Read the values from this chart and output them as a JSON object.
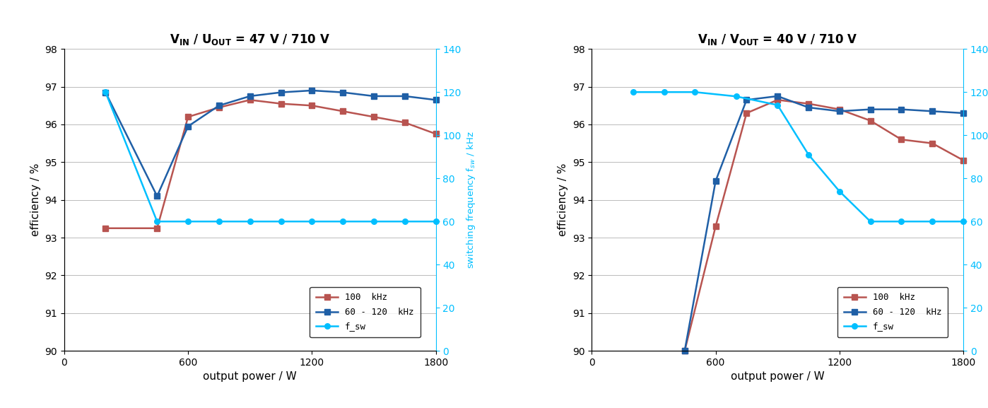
{
  "chart1": {
    "eff_100k_x": [
      200,
      450,
      600,
      750,
      900,
      1050,
      1200,
      1350,
      1500,
      1650,
      1800
    ],
    "eff_100k_y": [
      93.25,
      93.25,
      96.2,
      96.45,
      96.65,
      96.55,
      96.5,
      96.35,
      96.2,
      96.05,
      95.75
    ],
    "eff_var_x": [
      200,
      450,
      600,
      750,
      900,
      1050,
      1200,
      1350,
      1500,
      1650,
      1800
    ],
    "eff_var_y": [
      96.85,
      94.1,
      95.95,
      96.5,
      96.75,
      96.85,
      96.9,
      96.85,
      96.75,
      96.75,
      96.65
    ],
    "fsw_x": [
      200,
      450,
      600,
      750,
      900,
      1050,
      1200,
      1350,
      1500,
      1650,
      1800
    ],
    "fsw_y": [
      120,
      60,
      60,
      60,
      60,
      60,
      60,
      60,
      60,
      60,
      60
    ]
  },
  "chart2": {
    "eff_100k_x": [
      450,
      600,
      750,
      900,
      1050,
      1200,
      1350,
      1500,
      1650,
      1800
    ],
    "eff_100k_y": [
      90.0,
      93.3,
      96.3,
      96.65,
      96.55,
      96.4,
      96.1,
      95.6,
      95.5,
      95.05
    ],
    "eff_var_x": [
      450,
      600,
      750,
      900,
      1050,
      1200,
      1350,
      1500,
      1650,
      1800
    ],
    "eff_var_y": [
      90.0,
      94.5,
      96.65,
      96.75,
      96.45,
      96.35,
      96.4,
      96.4,
      96.35,
      96.3
    ],
    "fsw_x": [
      200,
      350,
      500,
      700,
      900,
      1050,
      1200,
      1350,
      1500,
      1650,
      1800
    ],
    "fsw_y": [
      120,
      120,
      120,
      118,
      114,
      91,
      74,
      60,
      60,
      60,
      60
    ]
  },
  "colors": {
    "red": "#B85450",
    "blue_dark": "#1F5FA6",
    "blue_light": "#00BFFF",
    "grid": "#BBBBBB",
    "background": "#FFFFFF"
  },
  "titles": [
    "V$_{\\mathbf{IN}}$ / U$_{\\mathbf{OUT}}$ = 47 V / 710 V",
    "V$_{\\mathbf{IN}}$ / V$_{\\mathbf{OUT}}$ = 40 V / 710 V"
  ],
  "ylabel_left": "efficiency / %",
  "ylabel_right": "switching frequency f$_{sw}$ / kHz",
  "xlabel": "output power / W",
  "ylim_left": [
    90,
    98
  ],
  "ylim_right": [
    0,
    140
  ],
  "xlim": [
    0,
    1800
  ],
  "yticks_left": [
    90,
    91,
    92,
    93,
    94,
    95,
    96,
    97,
    98
  ],
  "yticks_right": [
    0,
    20,
    40,
    60,
    80,
    100,
    120,
    140
  ],
  "xticks": [
    0,
    600,
    1200,
    1800
  ],
  "legend_labels": [
    "100  kHz",
    "60 - 120  kHz",
    "f_sw"
  ]
}
